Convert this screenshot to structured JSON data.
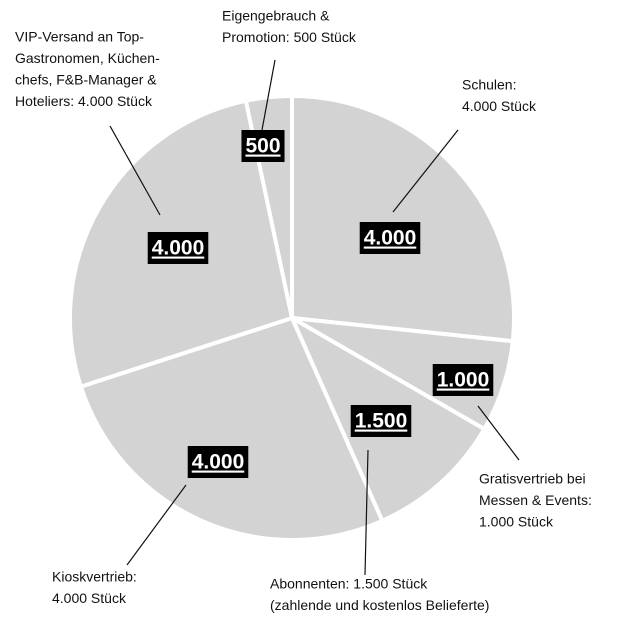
{
  "chart_data": {
    "type": "pie",
    "labels": [
      [
        "Schulen:",
        "4.000 Stück"
      ],
      [
        "Gratisvertrieb bei",
        "Messen & Events:",
        "1.000 Stück"
      ],
      [
        "Abonnenten: 1.500 Stück",
        "(zahlende und kostenlos Belieferte)"
      ],
      [
        "Kioskvertrieb:",
        "4.000 Stück"
      ],
      [
        "VIP-Versand an Top-",
        "Gastronomen, Küchen-",
        "chefs, F&B-Manager &",
        "Hoteliers: 4.000 Stück"
      ],
      [
        "Eigengebrauch &",
        "Promotion: 500 Stück"
      ]
    ],
    "values": [
      4000,
      1000,
      1500,
      4000,
      4000,
      500
    ],
    "value_labels": [
      "4.000",
      "1.000",
      "1.500",
      "4.000",
      "4.000",
      "500"
    ],
    "color": "#d3d3d3"
  }
}
